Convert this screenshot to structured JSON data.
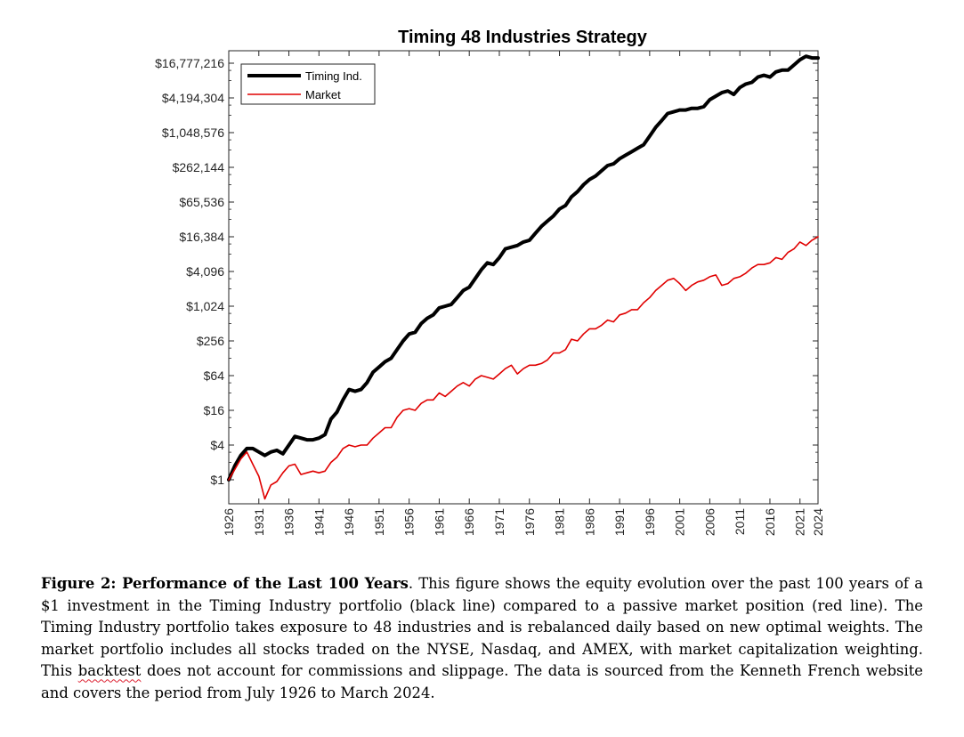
{
  "chart_data": {
    "type": "line",
    "title": "Timing 48 Industries Strategy",
    "xlabel": "",
    "ylabel": "",
    "y_scale": "log2",
    "xlim": [
      1926,
      2024
    ],
    "ylim": [
      0.55,
      24000000
    ],
    "x_ticks": [
      1926,
      1931,
      1936,
      1941,
      1946,
      1951,
      1956,
      1961,
      1966,
      1971,
      1976,
      1981,
      1986,
      1991,
      1996,
      2001,
      2006,
      2011,
      2016,
      2021,
      2024
    ],
    "x_tick_labels": [
      "1926",
      "1931",
      "1936",
      "1941",
      "1946",
      "1951",
      "1956",
      "1961",
      "1966",
      "1971",
      "1976",
      "1981",
      "1986",
      "1991",
      "1996",
      "2001",
      "2006",
      "2011",
      "2016",
      "2021",
      "2024"
    ],
    "y_ticks": [
      1,
      4,
      16,
      64,
      256,
      1024,
      4096,
      16384,
      65536,
      262144,
      1048576,
      4194304,
      16777216
    ],
    "y_tick_labels": [
      "$1",
      "$4",
      "$16",
      "$64",
      "$256",
      "$1,024",
      "$4,096",
      "$16,384",
      "$65,536",
      "$262,144",
      "$1,048,576",
      "$4,194,304",
      "$16,777,216"
    ],
    "grid": false,
    "legend_position": "top-left",
    "series": [
      {
        "name": "Timing Ind.",
        "color": "#000000",
        "x": [
          1926,
          1927,
          1928,
          1929,
          1930,
          1931,
          1932,
          1933,
          1934,
          1935,
          1936,
          1937,
          1938,
          1939,
          1940,
          1941,
          1942,
          1943,
          1944,
          1945,
          1946,
          1947,
          1948,
          1949,
          1950,
          1951,
          1952,
          1953,
          1954,
          1955,
          1956,
          1957,
          1958,
          1959,
          1960,
          1961,
          1962,
          1963,
          1964,
          1965,
          1966,
          1967,
          1968,
          1969,
          1970,
          1971,
          1972,
          1973,
          1974,
          1975,
          1976,
          1977,
          1978,
          1979,
          1980,
          1981,
          1982,
          1983,
          1984,
          1985,
          1986,
          1987,
          1988,
          1989,
          1990,
          1991,
          1992,
          1993,
          1994,
          1995,
          1996,
          1997,
          1998,
          1999,
          2000,
          2001,
          2002,
          2003,
          2004,
          2005,
          2006,
          2007,
          2008,
          2009,
          2010,
          2011,
          2012,
          2013,
          2014,
          2015,
          2016,
          2017,
          2018,
          2019,
          2020,
          2021,
          2022,
          2023,
          2024
        ],
        "log2_values": [
          0,
          0.8,
          1.4,
          1.8,
          1.8,
          1.6,
          1.4,
          1.6,
          1.7,
          1.5,
          2.0,
          2.5,
          2.4,
          2.3,
          2.3,
          2.4,
          2.6,
          3.5,
          3.9,
          4.6,
          5.2,
          5.1,
          5.2,
          5.6,
          6.2,
          6.5,
          6.8,
          7.0,
          7.5,
          8.0,
          8.4,
          8.5,
          9.0,
          9.3,
          9.5,
          9.9,
          10.0,
          10.1,
          10.5,
          10.9,
          11.1,
          11.6,
          12.1,
          12.5,
          12.4,
          12.8,
          13.3,
          13.4,
          13.5,
          13.7,
          13.8,
          14.2,
          14.6,
          14.9,
          15.2,
          15.6,
          15.8,
          16.3,
          16.6,
          17.0,
          17.3,
          17.5,
          17.8,
          18.1,
          18.2,
          18.5,
          18.7,
          18.9,
          19.1,
          19.3,
          19.8,
          20.3,
          20.7,
          21.1,
          21.2,
          21.3,
          21.3,
          21.4,
          21.4,
          21.5,
          21.9,
          22.1,
          22.3,
          22.4,
          22.2,
          22.6,
          22.8,
          22.9,
          23.2,
          23.3,
          23.2,
          23.5,
          23.6,
          23.6,
          23.9,
          24.2,
          24.4,
          24.3,
          24.3
        ]
      },
      {
        "name": "Market",
        "color": "#e00000",
        "x": [
          1926,
          1927,
          1928,
          1929,
          1930,
          1931,
          1932,
          1933,
          1934,
          1935,
          1936,
          1937,
          1938,
          1939,
          1940,
          1941,
          1942,
          1943,
          1944,
          1945,
          1946,
          1947,
          1948,
          1949,
          1950,
          1951,
          1952,
          1953,
          1954,
          1955,
          1956,
          1957,
          1958,
          1959,
          1960,
          1961,
          1962,
          1963,
          1964,
          1965,
          1966,
          1967,
          1968,
          1969,
          1970,
          1971,
          1972,
          1973,
          1974,
          1975,
          1976,
          1977,
          1978,
          1979,
          1980,
          1981,
          1982,
          1983,
          1984,
          1985,
          1986,
          1987,
          1988,
          1989,
          1990,
          1991,
          1992,
          1993,
          1994,
          1995,
          1996,
          1997,
          1998,
          1999,
          2000,
          2001,
          2002,
          2003,
          2004,
          2005,
          2006,
          2007,
          2008,
          2009,
          2010,
          2011,
          2012,
          2013,
          2014,
          2015,
          2016,
          2017,
          2018,
          2019,
          2020,
          2021,
          2022,
          2023,
          2024
        ],
        "log2_values": [
          0,
          0.6,
          1.2,
          1.6,
          0.9,
          0.2,
          -1.1,
          -0.3,
          -0.1,
          0.4,
          0.8,
          0.9,
          0.3,
          0.4,
          0.5,
          0.4,
          0.5,
          1.0,
          1.3,
          1.8,
          2.0,
          1.9,
          2.0,
          2.0,
          2.4,
          2.7,
          3.0,
          3.0,
          3.6,
          4.0,
          4.1,
          4.0,
          4.4,
          4.6,
          4.6,
          5.0,
          4.8,
          5.1,
          5.4,
          5.6,
          5.4,
          5.8,
          6.0,
          5.9,
          5.8,
          6.1,
          6.4,
          6.6,
          6.1,
          6.4,
          6.6,
          6.6,
          6.7,
          6.9,
          7.3,
          7.3,
          7.5,
          8.1,
          8.0,
          8.4,
          8.7,
          8.7,
          8.9,
          9.2,
          9.1,
          9.5,
          9.6,
          9.8,
          9.8,
          10.2,
          10.5,
          10.9,
          11.2,
          11.5,
          11.6,
          11.3,
          10.9,
          11.2,
          11.4,
          11.5,
          11.7,
          11.8,
          11.2,
          11.3,
          11.6,
          11.7,
          11.9,
          12.2,
          12.4,
          12.4,
          12.5,
          12.8,
          12.7,
          13.1,
          13.3,
          13.7,
          13.5,
          13.8,
          14.0
        ]
      }
    ]
  },
  "legend": {
    "items": [
      {
        "label": "Timing Ind.",
        "color": "#000000"
      },
      {
        "label": "Market",
        "color": "#e00000"
      }
    ]
  },
  "caption": {
    "lead": "Figure 2: Performance of the Last 100 Years",
    "part1": ". This figure shows the equity evolution over the past 100 years of a $1 investment in the Timing Industry portfolio (black line) compared to a passive market position (red line).  The Timing Industry portfolio takes exposure to 48 industries and is rebalanced daily based on new optimal weights.  The market portfolio includes all stocks traded on the NYSE, Nasdaq, and AMEX, with market capitalization weighting.  This ",
    "flagged_word": "backtest",
    "part2": " does not account for commissions and slippage. The data is sourced from the Kenneth French website and covers the period from July 1926 to March 2024."
  }
}
